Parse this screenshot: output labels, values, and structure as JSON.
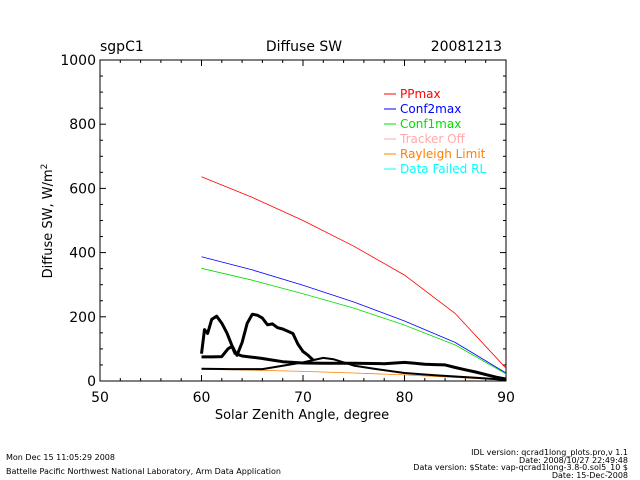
{
  "chart_data": {
    "type": "line",
    "site": "sgpC1",
    "title": "Diffuse SW",
    "date": "20081213",
    "xlabel": "Solar Zenith Angle, degree",
    "ylabel": "Diffuse SW, W/m",
    "ylabel_sup": "2",
    "xlim": [
      50,
      90
    ],
    "ylim": [
      0,
      1000
    ],
    "xticks": [
      "50",
      "60",
      "70",
      "80",
      "90"
    ],
    "yticks": [
      "0",
      "200",
      "400",
      "600",
      "800",
      "1000"
    ],
    "grid": false,
    "legend_position": "top-right",
    "series": [
      {
        "name": "PPmax",
        "color": "#ff0000",
        "width": 0.8,
        "points": [
          [
            60,
            636
          ],
          [
            65,
            572
          ],
          [
            70,
            500
          ],
          [
            75,
            420
          ],
          [
            80,
            330
          ],
          [
            85,
            210
          ],
          [
            90,
            40
          ]
        ]
      },
      {
        "name": "Conf2max",
        "color": "#0000ff",
        "width": 0.8,
        "points": [
          [
            60,
            387
          ],
          [
            65,
            346
          ],
          [
            70,
            298
          ],
          [
            75,
            246
          ],
          [
            80,
            187
          ],
          [
            85,
            120
          ],
          [
            90,
            25
          ]
        ]
      },
      {
        "name": "Conf1max",
        "color": "#00dd00",
        "width": 0.8,
        "points": [
          [
            60,
            351
          ],
          [
            65,
            314
          ],
          [
            70,
            272
          ],
          [
            75,
            227
          ],
          [
            80,
            174
          ],
          [
            85,
            112
          ],
          [
            90,
            22
          ]
        ]
      },
      {
        "name": "Tracker Off",
        "color": "#ffaaaa",
        "width": 0.8,
        "points": []
      },
      {
        "name": "Rayleigh Limit",
        "color": "#ff8000",
        "width": 0.8,
        "points": [
          [
            60,
            36
          ],
          [
            65,
            34
          ],
          [
            70,
            30
          ],
          [
            75,
            25
          ],
          [
            80,
            19
          ],
          [
            85,
            11
          ],
          [
            90,
            3
          ]
        ]
      },
      {
        "name": "Data Failed RL",
        "color": "#00ffff",
        "width": 0.8,
        "points": []
      },
      {
        "name": "",
        "color": "#000000",
        "width": 3,
        "points": [
          [
            60,
            85
          ],
          [
            60.3,
            160
          ],
          [
            60.6,
            148
          ],
          [
            61,
            192
          ],
          [
            61.5,
            202
          ],
          [
            62,
            180
          ],
          [
            62.5,
            150
          ],
          [
            63,
            110
          ],
          [
            63.5,
            80
          ],
          [
            64,
            120
          ],
          [
            64.5,
            180
          ],
          [
            65,
            208
          ],
          [
            65.5,
            205
          ],
          [
            66,
            196
          ],
          [
            66.5,
            175
          ],
          [
            67,
            178
          ],
          [
            67.5,
            166
          ],
          [
            68,
            162
          ],
          [
            68.5,
            155
          ],
          [
            69,
            148
          ],
          [
            69.5,
            115
          ],
          [
            70,
            92
          ],
          [
            70.5,
            80
          ],
          [
            71,
            65
          ]
        ]
      },
      {
        "name": "",
        "color": "#000000",
        "width": 3,
        "points": [
          [
            60,
            75
          ],
          [
            61,
            75
          ],
          [
            62,
            76
          ],
          [
            62.6,
            100
          ],
          [
            63,
            108
          ],
          [
            63.3,
            86
          ],
          [
            64,
            78
          ],
          [
            65,
            74
          ],
          [
            66,
            70
          ],
          [
            67,
            65
          ],
          [
            68,
            60
          ],
          [
            70,
            56
          ],
          [
            72,
            55
          ],
          [
            75,
            55
          ],
          [
            78,
            54
          ],
          [
            80,
            58
          ],
          [
            81,
            55
          ],
          [
            82,
            52
          ],
          [
            83,
            51
          ],
          [
            84,
            50
          ],
          [
            85,
            42
          ],
          [
            86,
            35
          ],
          [
            87,
            28
          ],
          [
            88,
            20
          ],
          [
            89,
            12
          ],
          [
            90,
            6
          ]
        ]
      },
      {
        "name": "",
        "color": "#000000",
        "width": 2,
        "points": [
          [
            60,
            38
          ],
          [
            63,
            37
          ],
          [
            66,
            37
          ],
          [
            70,
            58
          ],
          [
            72,
            72
          ],
          [
            73,
            68
          ],
          [
            75,
            48
          ],
          [
            77,
            38
          ],
          [
            80,
            25
          ],
          [
            83,
            18
          ],
          [
            85,
            14
          ],
          [
            87,
            10
          ],
          [
            89,
            6
          ],
          [
            90,
            3
          ]
        ]
      }
    ]
  },
  "footer": {
    "timestamp": "Mon Dec 15 11:05:29 2008",
    "lab": "Battelle Pacific Northwest National Laboratory, Arm Data Application",
    "idl": "IDL version: qcrad1long_plots.pro,v 1.1",
    "idl_date": "Date: 2008/10/27 22:49:48",
    "data_version": "Data version: $State: vap-qcrad1long-3.8-0.sol5_10 $",
    "data_date": "Date: 15-Dec-2008"
  }
}
